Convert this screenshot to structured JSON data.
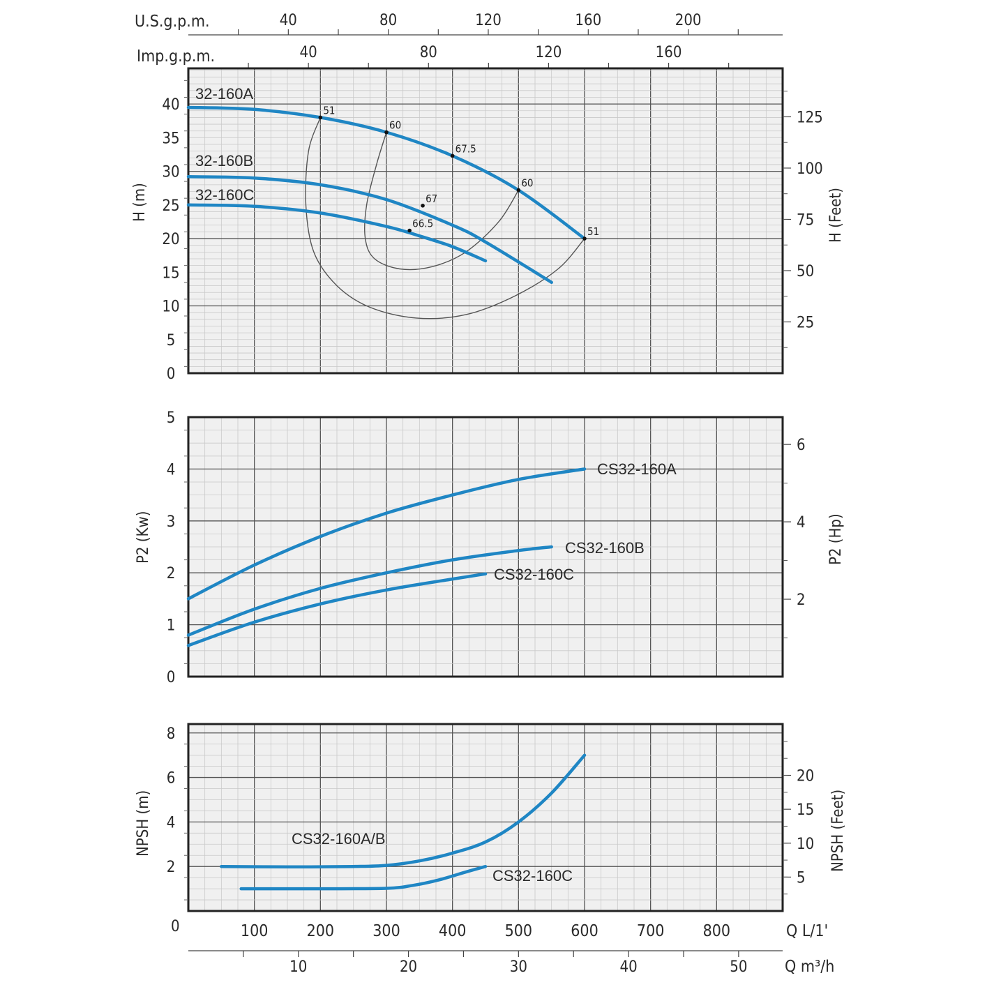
{
  "colors": {
    "curve": "#1f86c4",
    "panel_bg": "#f0f0f0",
    "grid_minor": "#c9c9c9",
    "grid_major": "#555555",
    "iso_line": "#555555",
    "text": "#2a2a2a"
  },
  "top_axes": {
    "usgpm_label": "U.S.g.p.m.",
    "usgpm_ticks": [
      "40",
      "80",
      "120",
      "160",
      "200"
    ],
    "usgpm_values": [
      40,
      80,
      120,
      160,
      200
    ],
    "impgpm_label": "Imp.g.p.m.",
    "impgpm_ticks": [
      "40",
      "80",
      "120",
      "160"
    ],
    "impgpm_values": [
      40,
      80,
      120,
      160
    ]
  },
  "bottom_axes": {
    "q_lmin_label": "Q L/1'",
    "q_lmin_ticks": [
      "100",
      "200",
      "300",
      "400",
      "500",
      "600",
      "700",
      "800"
    ],
    "q_lmin_values": [
      100,
      200,
      300,
      400,
      500,
      600,
      700,
      800
    ],
    "q_m3h_label": "Q m³/h",
    "q_m3h_ticks": [
      "10",
      "20",
      "30",
      "40",
      "50"
    ],
    "q_m3h_values": [
      10,
      20,
      30,
      40,
      50
    ],
    "zero_label": "0"
  },
  "chart_data": [
    {
      "type": "line",
      "x_unit": "L/min",
      "xlim": [
        0,
        900
      ],
      "ylabel": "H (m)",
      "ylim": [
        0,
        40
      ],
      "yticks": [
        "0",
        "5",
        "10",
        "15",
        "20",
        "25",
        "30",
        "35",
        "40"
      ],
      "y2label": "H (Feet)",
      "y2ticks": [
        "25",
        "50",
        "75",
        "100",
        "125"
      ],
      "y2values": [
        25,
        50,
        75,
        100,
        125
      ],
      "grid": true,
      "series": [
        {
          "name": "32-160A",
          "x": [
            0,
            100,
            200,
            300,
            400,
            500,
            600
          ],
          "y": [
            39.5,
            39.2,
            38.0,
            35.8,
            32.3,
            27.2,
            20.0
          ]
        },
        {
          "name": "32-160B",
          "x": [
            0,
            100,
            200,
            300,
            400,
            450,
            550
          ],
          "y": [
            29.2,
            29.0,
            28.0,
            25.8,
            22.0,
            19.5,
            13.5
          ]
        },
        {
          "name": "32-160C",
          "x": [
            0,
            100,
            200,
            300,
            350,
            400,
            450
          ],
          "y": [
            25.0,
            24.8,
            23.8,
            21.8,
            20.4,
            18.8,
            16.7
          ]
        }
      ],
      "efficiency_points": [
        {
          "label": "51",
          "x": 200,
          "y": 38.0
        },
        {
          "label": "60",
          "x": 300,
          "y": 35.8
        },
        {
          "label": "67.5",
          "x": 400,
          "y": 32.3
        },
        {
          "label": "60",
          "x": 500,
          "y": 27.2
        },
        {
          "label": "51",
          "x": 600,
          "y": 20.0
        },
        {
          "label": "67",
          "x": 355,
          "y": 24.9
        },
        {
          "label": "66.5",
          "x": 335,
          "y": 21.2
        }
      ],
      "iso_efficiency_lines": [
        {
          "label": "51",
          "x": [
            200,
            182,
            178,
            190,
            225,
            275,
            345,
            420,
            495,
            560,
            600
          ],
          "y": [
            38.0,
            33.0,
            25.0,
            18.0,
            13.0,
            9.8,
            8.2,
            8.7,
            11.5,
            15.5,
            20.0
          ]
        },
        {
          "label": "60",
          "x": [
            300,
            285,
            270,
            268,
            282,
            320,
            368,
            420,
            470,
            500
          ],
          "y": [
            35.8,
            31.0,
            25.0,
            20.0,
            17.0,
            15.5,
            15.8,
            18.0,
            22.5,
            27.2
          ]
        }
      ]
    },
    {
      "type": "line",
      "x_unit": "L/min",
      "xlim": [
        0,
        900
      ],
      "ylabel": "P2 (Kw)",
      "ylim": [
        0,
        5
      ],
      "yticks": [
        "0",
        "1",
        "2",
        "3",
        "4",
        "5"
      ],
      "y2label": "P2 (Hp)",
      "y2ticks": [
        "2",
        "4",
        "6"
      ],
      "y2values": [
        2,
        4,
        6
      ],
      "grid": true,
      "series": [
        {
          "name": "CS32-160A",
          "x": [
            0,
            100,
            200,
            300,
            400,
            500,
            600
          ],
          "y": [
            1.5,
            2.15,
            2.7,
            3.15,
            3.5,
            3.8,
            4.0
          ]
        },
        {
          "name": "CS32-160B",
          "x": [
            0,
            100,
            200,
            300,
            400,
            500,
            550
          ],
          "y": [
            0.8,
            1.3,
            1.7,
            2.0,
            2.25,
            2.43,
            2.5
          ]
        },
        {
          "name": "CS32-160C",
          "x": [
            0,
            100,
            200,
            300,
            400,
            450
          ],
          "y": [
            0.6,
            1.05,
            1.4,
            1.67,
            1.88,
            1.98
          ]
        }
      ]
    },
    {
      "type": "line",
      "x_unit": "L/min",
      "xlim": [
        0,
        900
      ],
      "ylabel": "NPSH (m)",
      "ylim": [
        0,
        8
      ],
      "yticks": [
        "2",
        "4",
        "6",
        "8"
      ],
      "y2label": "NPSH (Feet)",
      "y2ticks": [
        "5",
        "10",
        "15",
        "20"
      ],
      "y2values": [
        5,
        10,
        15,
        20
      ],
      "grid": true,
      "series": [
        {
          "name": "CS32-160A/B",
          "x": [
            50,
            150,
            250,
            300,
            350,
            400,
            450,
            500,
            550,
            600
          ],
          "y": [
            2.0,
            1.98,
            2.0,
            2.05,
            2.25,
            2.6,
            3.1,
            4.0,
            5.3,
            7.0
          ]
        },
        {
          "name": "CS32-160C",
          "x": [
            80,
            200,
            300,
            340,
            380,
            420,
            450
          ],
          "y": [
            1.0,
            1.0,
            1.02,
            1.15,
            1.4,
            1.75,
            2.0
          ]
        }
      ]
    }
  ]
}
